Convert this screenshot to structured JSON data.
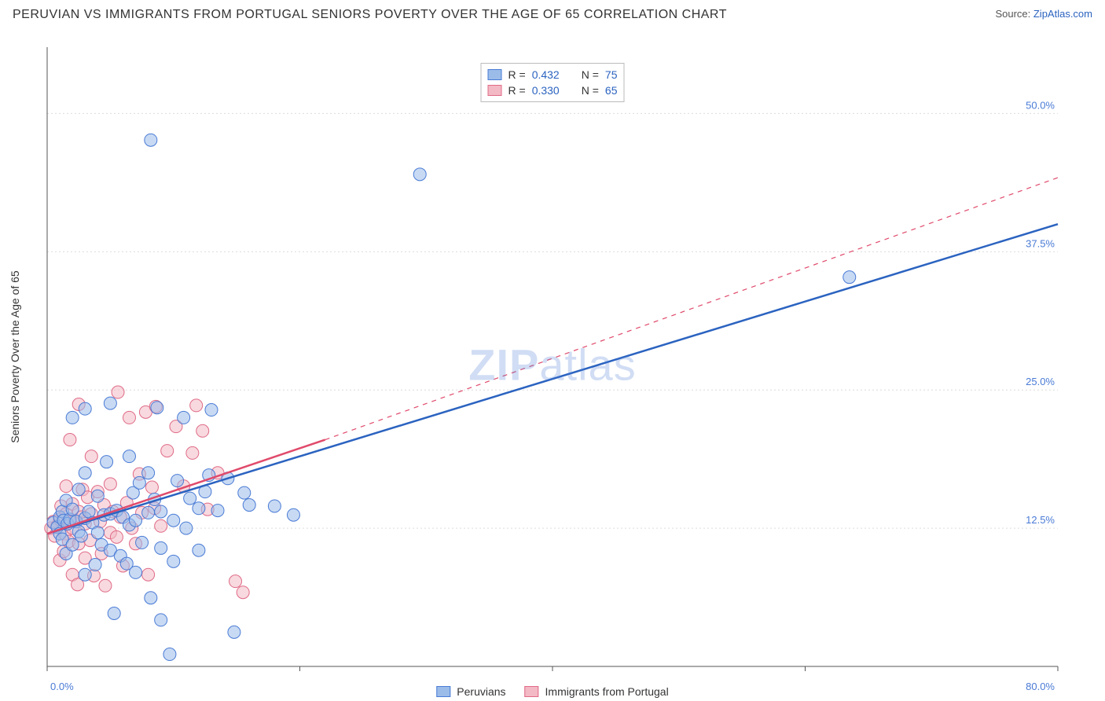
{
  "header": {
    "title": "PERUVIAN VS IMMIGRANTS FROM PORTUGAL SENIORS POVERTY OVER THE AGE OF 65 CORRELATION CHART",
    "source_prefix": "Source: ",
    "source_link": "ZipAtlas.com"
  },
  "watermark": {
    "bold": "ZIP",
    "rest": "atlas"
  },
  "chart": {
    "type": "scatter",
    "ylabel": "Seniors Poverty Over the Age of 65",
    "xlim": [
      0,
      80
    ],
    "ylim": [
      0,
      56
    ],
    "background_color": "#ffffff",
    "grid_color": "#dcdcdc",
    "axis_color": "#555555",
    "tick_label_color": "#4a7bd6",
    "marker_radius": 8,
    "marker_opacity": 0.55,
    "line_width": 2.5,
    "xticks": [
      0,
      20,
      40,
      60,
      80
    ],
    "xtick_labels": [
      "0.0%",
      "",
      "",
      "",
      "80.0%"
    ],
    "yticks": [
      12.5,
      25.0,
      37.5,
      50.0
    ],
    "ytick_labels": [
      "12.5%",
      "25.0%",
      "37.5%",
      "50.0%"
    ],
    "series": [
      {
        "name": "Peruvians",
        "color_fill": "#9bbce9",
        "color_stroke": "#4a7bd6",
        "line_color": "#2b63c0",
        "R": "0.432",
        "N": "75",
        "trend": {
          "x1": 0,
          "y1": 12.0,
          "x2": 80,
          "y2": 40.0,
          "dash_extension": false
        },
        "points": [
          [
            0.5,
            13
          ],
          [
            0.8,
            12.6
          ],
          [
            1,
            12
          ],
          [
            1,
            13.5
          ],
          [
            1.2,
            11.5
          ],
          [
            1.2,
            14
          ],
          [
            1.3,
            13.2
          ],
          [
            1.5,
            10.2
          ],
          [
            1.5,
            15
          ],
          [
            1.6,
            12.9
          ],
          [
            1.8,
            13.3
          ],
          [
            2,
            11
          ],
          [
            2,
            14.2
          ],
          [
            2,
            22.5
          ],
          [
            2.3,
            13.1
          ],
          [
            2.5,
            12.2
          ],
          [
            2.5,
            16
          ],
          [
            2.7,
            11.8
          ],
          [
            3,
            8.3
          ],
          [
            3,
            13.4
          ],
          [
            3,
            17.5
          ],
          [
            3,
            23.3
          ],
          [
            3.3,
            14
          ],
          [
            3.6,
            13
          ],
          [
            3.8,
            9.2
          ],
          [
            4,
            12.1
          ],
          [
            4,
            15.4
          ],
          [
            4.3,
            11
          ],
          [
            4.5,
            13.7
          ],
          [
            4.7,
            18.5
          ],
          [
            5,
            10.5
          ],
          [
            5,
            13.8
          ],
          [
            5,
            23.8
          ],
          [
            5.3,
            4.8
          ],
          [
            5.5,
            14.1
          ],
          [
            5.8,
            10
          ],
          [
            6,
            13.5
          ],
          [
            6.3,
            9.3
          ],
          [
            6.5,
            12.8
          ],
          [
            6.5,
            19
          ],
          [
            6.8,
            15.7
          ],
          [
            7,
            8.5
          ],
          [
            7,
            13.2
          ],
          [
            7.3,
            16.6
          ],
          [
            7.5,
            11.2
          ],
          [
            8,
            13.9
          ],
          [
            8,
            17.5
          ],
          [
            8.2,
            6.2
          ],
          [
            8.5,
            15.1
          ],
          [
            8.7,
            23.4
          ],
          [
            9,
            4.2
          ],
          [
            9,
            10.7
          ],
          [
            9,
            14
          ],
          [
            9.7,
            1.1
          ],
          [
            10,
            9.5
          ],
          [
            10,
            13.2
          ],
          [
            10.3,
            16.8
          ],
          [
            10.8,
            22.5
          ],
          [
            11,
            12.5
          ],
          [
            11.3,
            15.2
          ],
          [
            12,
            10.5
          ],
          [
            12,
            14.3
          ],
          [
            12.5,
            15.8
          ],
          [
            12.8,
            17.3
          ],
          [
            13,
            23.2
          ],
          [
            13.5,
            14.1
          ],
          [
            14.3,
            17
          ],
          [
            14.8,
            3.1
          ],
          [
            15.6,
            15.7
          ],
          [
            16,
            14.6
          ],
          [
            18,
            14.5
          ],
          [
            19.5,
            13.7
          ],
          [
            8.2,
            47.6
          ],
          [
            29.5,
            44.5
          ],
          [
            63.5,
            35.2
          ]
        ]
      },
      {
        "name": "Immigrants from Portugal",
        "color_fill": "#f3b9c5",
        "color_stroke": "#e06a86",
        "line_color": "#e04a6b",
        "R": "0.330",
        "N": "65",
        "trend": {
          "x1": 0,
          "y1": 12.0,
          "x2": 22,
          "y2": 20.5,
          "dash_extension": true,
          "dash_x2": 80,
          "dash_y2": 44.2
        },
        "points": [
          [
            0.3,
            12.5
          ],
          [
            0.5,
            13.1
          ],
          [
            0.6,
            11.8
          ],
          [
            0.8,
            12.7
          ],
          [
            1,
            9.6
          ],
          [
            1,
            13.3
          ],
          [
            1.1,
            14.5
          ],
          [
            1.3,
            10.4
          ],
          [
            1.4,
            12
          ],
          [
            1.5,
            13.8
          ],
          [
            1.5,
            16.3
          ],
          [
            1.7,
            11.3
          ],
          [
            1.8,
            13.1
          ],
          [
            1.8,
            20.5
          ],
          [
            2,
            8.3
          ],
          [
            2,
            12.5
          ],
          [
            2,
            14.7
          ],
          [
            2.2,
            13.2
          ],
          [
            2.4,
            7.4
          ],
          [
            2.5,
            11.1
          ],
          [
            2.5,
            14
          ],
          [
            2.5,
            23.7
          ],
          [
            2.7,
            13.5
          ],
          [
            2.8,
            16
          ],
          [
            3,
            9.8
          ],
          [
            3,
            12.9
          ],
          [
            3.2,
            15.3
          ],
          [
            3.4,
            11.4
          ],
          [
            3.5,
            13.8
          ],
          [
            3.5,
            19
          ],
          [
            3.7,
            8.2
          ],
          [
            4,
            15.8
          ],
          [
            4.2,
            13.1
          ],
          [
            4.3,
            10.2
          ],
          [
            4.5,
            14.6
          ],
          [
            4.6,
            7.3
          ],
          [
            5,
            12.1
          ],
          [
            5,
            16.5
          ],
          [
            5.2,
            14
          ],
          [
            5.5,
            11.7
          ],
          [
            5.6,
            24.8
          ],
          [
            5.8,
            13.5
          ],
          [
            6,
            9.1
          ],
          [
            6.3,
            14.8
          ],
          [
            6.5,
            22.5
          ],
          [
            6.7,
            12.5
          ],
          [
            7,
            11.1
          ],
          [
            7.3,
            17.4
          ],
          [
            7.5,
            13.9
          ],
          [
            7.8,
            23
          ],
          [
            8,
            8.3
          ],
          [
            8.3,
            16.2
          ],
          [
            8.5,
            14.3
          ],
          [
            8.6,
            23.5
          ],
          [
            9,
            12.7
          ],
          [
            9.5,
            19.5
          ],
          [
            10.2,
            21.7
          ],
          [
            10.8,
            16.3
          ],
          [
            11.5,
            19.3
          ],
          [
            12.3,
            21.3
          ],
          [
            12.7,
            14.2
          ],
          [
            13.5,
            17.5
          ],
          [
            14.9,
            7.7
          ],
          [
            15.5,
            6.7
          ],
          [
            11.8,
            23.6
          ]
        ]
      }
    ],
    "legend_top": {
      "R_prefix": "R =",
      "N_prefix": "N ="
    },
    "legend_bottom": true
  }
}
